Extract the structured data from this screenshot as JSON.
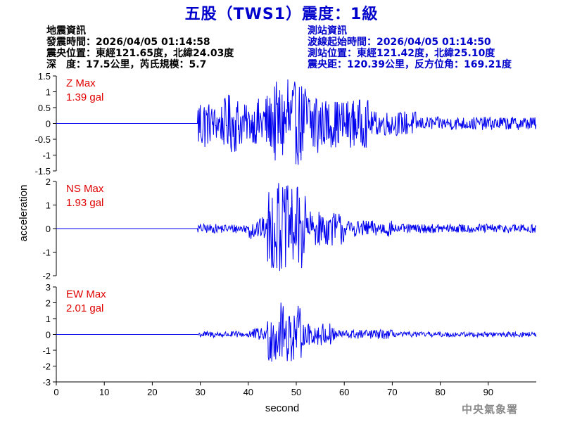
{
  "title": "五股（TWS1）震度：1級",
  "quake_info": {
    "heading": "地震資訊",
    "origin_time": "發震時間：2026/04/05 01:14:58",
    "epicenter": "震央位置：東經121.65度，北緯24.03度",
    "depth_mag": "深　度：17.5公里，芮氏規模：5.7"
  },
  "station_info": {
    "heading": "測站資訊",
    "wave_start": "波線起始時間：2026/04/05 01:14:50",
    "location": "測站位置：東經121.42度，北緯25.10度",
    "distance": "震央距：120.39公里，反方位角：169.21度"
  },
  "brand": "中央氣象署",
  "chart_data": {
    "type": "line",
    "xlabel": "second",
    "ylabel": "acceleration",
    "xlim": [
      0,
      100
    ],
    "x_ticks": [
      "0",
      "10",
      "20",
      "30",
      "40",
      "50",
      "60",
      "70",
      "80",
      "90"
    ],
    "line_color": "#0000ee",
    "annotation_color": "#e00000",
    "signal_onset_s": 29.5,
    "panels": [
      {
        "name": "Z",
        "label": "Z Max",
        "max_text": "1.39 gal",
        "ylim": [
          -1.5,
          1.5
        ],
        "y_ticks": [
          "1.5",
          "1",
          "0.5",
          "0",
          "-0.5",
          "-1",
          "-1.5"
        ],
        "peak": 1.39
      },
      {
        "name": "NS",
        "label": "NS Max",
        "max_text": "1.93 gal",
        "ylim": [
          -2,
          2
        ],
        "y_ticks": [
          "2",
          "1",
          "0",
          "-1",
          "-2"
        ],
        "peak": 1.93
      },
      {
        "name": "EW",
        "label": "EW Max",
        "max_text": "2.01 gal",
        "ylim": [
          -3,
          3
        ],
        "y_ticks": [
          "3",
          "2",
          "1",
          "0",
          "-1",
          "-2",
          "-3"
        ],
        "peak": 2.01
      }
    ]
  }
}
